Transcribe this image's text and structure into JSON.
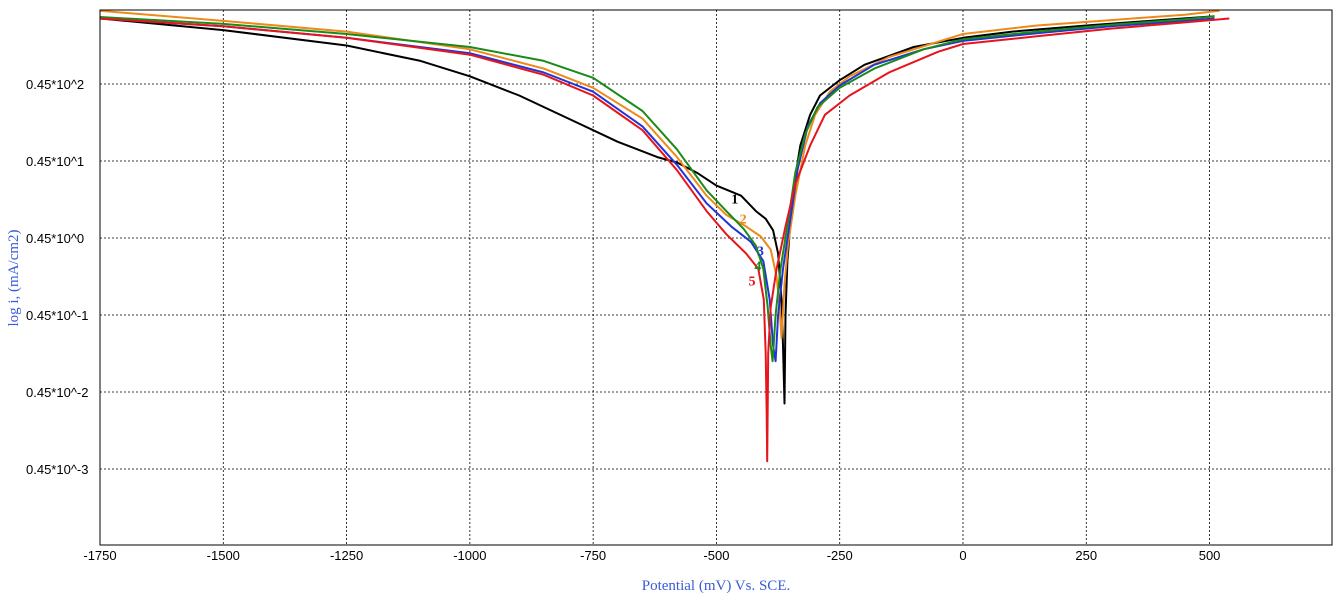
{
  "chart_data": {
    "type": "line",
    "xlabel": "Potential (mV) Vs. SCE.",
    "ylabel": "log i, (mA/cm2)",
    "x_ticks": [
      -1750,
      -1500,
      -1250,
      -1000,
      -750,
      -500,
      -250,
      0,
      250,
      500
    ],
    "x_tick_labels": [
      "-1750",
      "-1500",
      "-1250",
      "-1000",
      "-750",
      "-500",
      "-250",
      "0",
      "250",
      "500"
    ],
    "xlim": [
      -1750,
      750
    ],
    "y_ticks": [
      2,
      1,
      0,
      -1,
      -2,
      -3
    ],
    "y_tick_labels": [
      "0.45*10^2",
      "0.45*10^1",
      "0.45*10^0",
      "0.45*10^-1",
      "0.45*10^-2",
      "0.45*10^-3"
    ],
    "ylim": [
      -4,
      3
    ],
    "grid": true,
    "series": [
      {
        "name": "1",
        "color": "#000000",
        "cathodic": [
          [
            -1750,
            2.85
          ],
          [
            -1500,
            2.7
          ],
          [
            -1250,
            2.5
          ],
          [
            -1100,
            2.3
          ],
          [
            -1000,
            2.1
          ],
          [
            -900,
            1.85
          ],
          [
            -800,
            1.55
          ],
          [
            -700,
            1.25
          ],
          [
            -620,
            1.05
          ],
          [
            -580,
            0.98
          ],
          [
            -540,
            0.85
          ],
          [
            -500,
            0.68
          ],
          [
            -450,
            0.55
          ],
          [
            -420,
            0.35
          ],
          [
            -400,
            0.25
          ],
          [
            -385,
            0.1
          ],
          [
            -375,
            -0.2
          ],
          [
            -368,
            -0.8
          ],
          [
            -365,
            -1.4
          ],
          [
            -362,
            -2.15
          ]
        ],
        "anodic": [
          [
            -362,
            -2.15
          ],
          [
            -360,
            -1.0
          ],
          [
            -356,
            -0.3
          ],
          [
            -345,
            0.6
          ],
          [
            -330,
            1.2
          ],
          [
            -310,
            1.6
          ],
          [
            -290,
            1.85
          ],
          [
            -250,
            2.05
          ],
          [
            -200,
            2.25
          ],
          [
            -100,
            2.48
          ],
          [
            0,
            2.6
          ],
          [
            100,
            2.68
          ],
          [
            250,
            2.76
          ],
          [
            400,
            2.83
          ],
          [
            510,
            2.88
          ]
        ]
      },
      {
        "name": "2",
        "color": "#ee8a1a",
        "cathodic": [
          [
            -1750,
            2.95
          ],
          [
            -1500,
            2.82
          ],
          [
            -1250,
            2.68
          ],
          [
            -1000,
            2.45
          ],
          [
            -850,
            2.2
          ],
          [
            -750,
            1.95
          ],
          [
            -650,
            1.55
          ],
          [
            -580,
            1.05
          ],
          [
            -520,
            0.55
          ],
          [
            -480,
            0.3
          ],
          [
            -440,
            0.15
          ],
          [
            -410,
            0.02
          ],
          [
            -390,
            -0.15
          ],
          [
            -378,
            -0.5
          ],
          [
            -372,
            -0.9
          ],
          [
            -368,
            -1.3
          ]
        ],
        "anodic": [
          [
            -368,
            -1.3
          ],
          [
            -362,
            -0.6
          ],
          [
            -355,
            -0.1
          ],
          [
            -340,
            0.55
          ],
          [
            -320,
            1.2
          ],
          [
            -300,
            1.6
          ],
          [
            -270,
            1.9
          ],
          [
            -230,
            2.1
          ],
          [
            -150,
            2.35
          ],
          [
            -50,
            2.55
          ],
          [
            0,
            2.65
          ],
          [
            150,
            2.76
          ],
          [
            300,
            2.83
          ],
          [
            450,
            2.9
          ],
          [
            520,
            2.95
          ]
        ]
      },
      {
        "name": "3",
        "color": "#2433d6",
        "cathodic": [
          [
            -1750,
            2.85
          ],
          [
            -1500,
            2.75
          ],
          [
            -1250,
            2.6
          ],
          [
            -1000,
            2.4
          ],
          [
            -850,
            2.15
          ],
          [
            -750,
            1.9
          ],
          [
            -650,
            1.45
          ],
          [
            -580,
            0.95
          ],
          [
            -520,
            0.45
          ],
          [
            -470,
            0.15
          ],
          [
            -430,
            -0.05
          ],
          [
            -405,
            -0.3
          ],
          [
            -392,
            -0.8
          ],
          [
            -385,
            -1.4
          ],
          [
            -380,
            -1.6
          ]
        ],
        "anodic": [
          [
            -380,
            -1.6
          ],
          [
            -375,
            -1.0
          ],
          [
            -365,
            -0.4
          ],
          [
            -350,
            0.25
          ],
          [
            -335,
            0.9
          ],
          [
            -315,
            1.45
          ],
          [
            -290,
            1.75
          ],
          [
            -250,
            1.98
          ],
          [
            -180,
            2.25
          ],
          [
            -80,
            2.45
          ],
          [
            0,
            2.56
          ],
          [
            150,
            2.66
          ],
          [
            300,
            2.75
          ],
          [
            450,
            2.82
          ],
          [
            510,
            2.85
          ]
        ]
      },
      {
        "name": "4",
        "color": "#1a8a1a",
        "cathodic": [
          [
            -1750,
            2.87
          ],
          [
            -1500,
            2.78
          ],
          [
            -1250,
            2.65
          ],
          [
            -1000,
            2.48
          ],
          [
            -850,
            2.3
          ],
          [
            -750,
            2.08
          ],
          [
            -650,
            1.65
          ],
          [
            -580,
            1.15
          ],
          [
            -520,
            0.62
          ],
          [
            -480,
            0.35
          ],
          [
            -445,
            0.12
          ],
          [
            -420,
            -0.1
          ],
          [
            -405,
            -0.4
          ],
          [
            -396,
            -0.9
          ],
          [
            -390,
            -1.4
          ],
          [
            -386,
            -1.6
          ]
        ],
        "anodic": [
          [
            -386,
            -1.6
          ],
          [
            -380,
            -1.0
          ],
          [
            -370,
            -0.4
          ],
          [
            -355,
            0.2
          ],
          [
            -340,
            0.85
          ],
          [
            -320,
            1.35
          ],
          [
            -295,
            1.7
          ],
          [
            -250,
            1.95
          ],
          [
            -180,
            2.2
          ],
          [
            -80,
            2.45
          ],
          [
            0,
            2.58
          ],
          [
            150,
            2.68
          ],
          [
            300,
            2.77
          ],
          [
            450,
            2.84
          ],
          [
            510,
            2.88
          ]
        ]
      },
      {
        "name": "5",
        "color": "#e8141c",
        "cathodic": [
          [
            -1750,
            2.85
          ],
          [
            -1500,
            2.75
          ],
          [
            -1250,
            2.6
          ],
          [
            -1000,
            2.38
          ],
          [
            -850,
            2.12
          ],
          [
            -750,
            1.85
          ],
          [
            -650,
            1.4
          ],
          [
            -580,
            0.88
          ],
          [
            -520,
            0.35
          ],
          [
            -480,
            0.05
          ],
          [
            -440,
            -0.2
          ],
          [
            -415,
            -0.4
          ],
          [
            -404,
            -0.8
          ],
          [
            -400,
            -1.5
          ],
          [
            -398,
            -2.3
          ],
          [
            -397,
            -2.9
          ]
        ],
        "anodic": [
          [
            -397,
            -2.9
          ],
          [
            -395,
            -1.5
          ],
          [
            -390,
            -0.9
          ],
          [
            -378,
            -0.4
          ],
          [
            -360,
            0.15
          ],
          [
            -340,
            0.7
          ],
          [
            -310,
            1.2
          ],
          [
            -280,
            1.6
          ],
          [
            -230,
            1.85
          ],
          [
            -150,
            2.15
          ],
          [
            -50,
            2.42
          ],
          [
            0,
            2.52
          ],
          [
            150,
            2.62
          ],
          [
            300,
            2.72
          ],
          [
            450,
            2.8
          ],
          [
            540,
            2.85
          ]
        ]
      }
    ],
    "series_labels": [
      {
        "text": "1",
        "x": -470,
        "y": 0.45,
        "color": "#000000"
      },
      {
        "text": "2",
        "x": -453,
        "y": 0.19,
        "color": "#ee8a1a"
      },
      {
        "text": "3",
        "x": -418,
        "y": -0.23,
        "color": "#2433d6"
      },
      {
        "text": "4",
        "x": -423,
        "y": -0.42,
        "color": "#1a8a1a"
      },
      {
        "text": "5",
        "x": -435,
        "y": -0.62,
        "color": "#e8141c"
      }
    ]
  }
}
